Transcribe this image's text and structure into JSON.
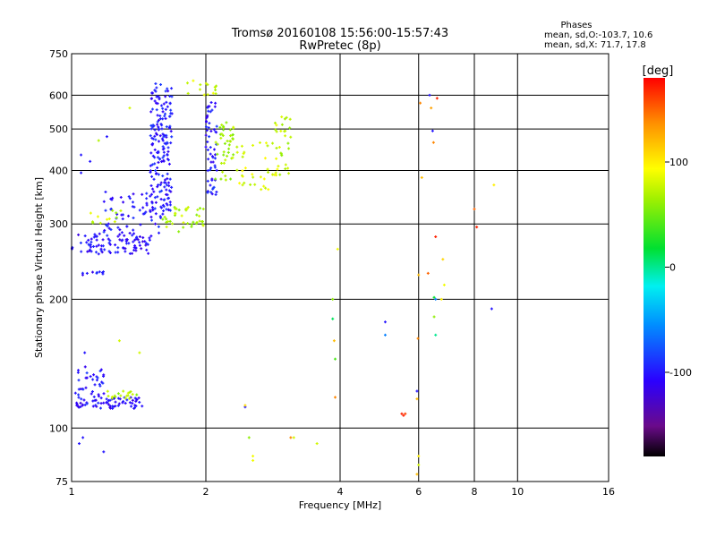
{
  "chart_data": {
    "type": "scatter",
    "title": "Tromsø 20160108 15:56:00-15:57:43",
    "subtitle": "RwPretec (8p)",
    "xlabel": "Frequency [MHz]",
    "ylabel": "Stationary phase Virtual Height [km]",
    "x_scale": "log2",
    "y_scale": "log",
    "xlim": [
      1,
      16
    ],
    "ylim": [
      75,
      750
    ],
    "x_ticks": [
      1,
      2,
      4,
      6,
      8,
      10,
      16
    ],
    "y_ticks": [
      75,
      100,
      200,
      300,
      400,
      500,
      600,
      750
    ],
    "grid": true,
    "stats": {
      "title": "Phases",
      "line_o": "mean, sd,O:-103.7, 10.6",
      "line_x": "mean, sd,X:  71.7, 17.8"
    },
    "colorbar": {
      "label": "[deg]",
      "range": [
        -180,
        180
      ],
      "ticks": [
        100,
        0,
        -100
      ],
      "colormap": "rainbow (black-purple-blue-cyan-green-yellow-orange-red)"
    },
    "clusters": [
      {
        "x_min": 1.0,
        "x_max": 1.5,
        "h_min": 255,
        "h_max": 285,
        "phase": -105,
        "n": 90
      },
      {
        "x_min": 1.18,
        "x_max": 1.62,
        "h_min": 280,
        "h_max": 360,
        "phase": -100,
        "n": 70
      },
      {
        "x_min": 1.5,
        "x_max": 1.68,
        "h_min": 320,
        "h_max": 640,
        "phase": -100,
        "n": 180
      },
      {
        "x_min": 1.6,
        "x_max": 2.0,
        "h_min": 285,
        "h_max": 330,
        "phase": 70,
        "n": 40
      },
      {
        "x_min": 1.1,
        "x_max": 1.3,
        "h_min": 300,
        "h_max": 330,
        "phase": 75,
        "n": 12
      },
      {
        "x_min": 2.0,
        "x_max": 2.12,
        "h_min": 350,
        "h_max": 580,
        "phase": -100,
        "n": 60
      },
      {
        "x_min": 2.1,
        "x_max": 2.35,
        "h_min": 380,
        "h_max": 520,
        "phase": 65,
        "n": 45
      },
      {
        "x_min": 2.35,
        "x_max": 2.9,
        "h_min": 360,
        "h_max": 470,
        "phase": 85,
        "n": 35
      },
      {
        "x_min": 2.85,
        "x_max": 3.1,
        "h_min": 390,
        "h_max": 540,
        "phase": 75,
        "n": 30
      },
      {
        "x_min": 1.78,
        "x_max": 2.12,
        "h_min": 600,
        "h_max": 650,
        "phase": 80,
        "n": 15
      },
      {
        "x_min": 1.02,
        "x_max": 1.45,
        "h_min": 111,
        "h_max": 118,
        "phase": -105,
        "n": 70
      },
      {
        "x_min": 1.02,
        "x_max": 1.2,
        "h_min": 118,
        "h_max": 140,
        "phase": -100,
        "n": 35
      },
      {
        "x_min": 1.2,
        "x_max": 1.4,
        "h_min": 117,
        "h_max": 122,
        "phase": 70,
        "n": 18
      },
      {
        "x_min": 1.05,
        "x_max": 1.22,
        "h_min": 228,
        "h_max": 232,
        "phase": -105,
        "n": 10
      }
    ],
    "points": [
      [
        1.05,
        435,
        -100
      ],
      [
        1.1,
        420,
        -100
      ],
      [
        1.05,
        395,
        -100
      ],
      [
        1.15,
        470,
        70
      ],
      [
        1.2,
        480,
        -100
      ],
      [
        1.35,
        560,
        80
      ],
      [
        1.04,
        92,
        -100
      ],
      [
        1.06,
        95,
        -100
      ],
      [
        1.18,
        88,
        -100
      ],
      [
        1.07,
        150,
        -100
      ],
      [
        1.42,
        150,
        80
      ],
      [
        1.28,
        160,
        80
      ],
      [
        2.45,
        112,
        -100
      ],
      [
        2.45,
        113,
        110
      ],
      [
        2.5,
        95,
        60
      ],
      [
        2.55,
        86,
        90
      ],
      [
        2.55,
        84,
        90
      ],
      [
        3.1,
        95,
        140
      ],
      [
        3.15,
        95,
        80
      ],
      [
        3.55,
        92,
        80
      ],
      [
        3.85,
        200,
        60
      ],
      [
        3.85,
        180,
        10
      ],
      [
        3.88,
        160,
        120
      ],
      [
        3.9,
        145,
        40
      ],
      [
        3.9,
        118,
        140
      ],
      [
        3.95,
        262,
        90
      ],
      [
        5.05,
        177,
        -100
      ],
      [
        5.05,
        165,
        -60
      ],
      [
        5.5,
        108,
        170
      ],
      [
        5.55,
        107,
        170
      ],
      [
        5.6,
        108,
        160
      ],
      [
        5.95,
        122,
        -100
      ],
      [
        5.95,
        117,
        120
      ],
      [
        6.0,
        86,
        100
      ],
      [
        6.0,
        82,
        80
      ],
      [
        5.95,
        78,
        120
      ],
      [
        5.98,
        162,
        140
      ],
      [
        6.0,
        228,
        120
      ],
      [
        6.05,
        575,
        140
      ],
      [
        6.1,
        385,
        120
      ],
      [
        6.3,
        230,
        150
      ],
      [
        6.35,
        600,
        -100
      ],
      [
        6.4,
        560,
        130
      ],
      [
        6.45,
        495,
        -100
      ],
      [
        6.48,
        465,
        140
      ],
      [
        6.5,
        182,
        60
      ],
      [
        6.5,
        202,
        20
      ],
      [
        6.55,
        200,
        -60
      ],
      [
        6.55,
        165,
        0
      ],
      [
        6.55,
        280,
        170
      ],
      [
        6.6,
        590,
        170
      ],
      [
        6.75,
        200,
        100
      ],
      [
        6.8,
        248,
        110
      ],
      [
        6.85,
        216,
        90
      ],
      [
        8.0,
        325,
        150
      ],
      [
        8.1,
        295,
        170
      ],
      [
        8.85,
        370,
        100
      ],
      [
        8.75,
        190,
        -100
      ]
    ]
  }
}
